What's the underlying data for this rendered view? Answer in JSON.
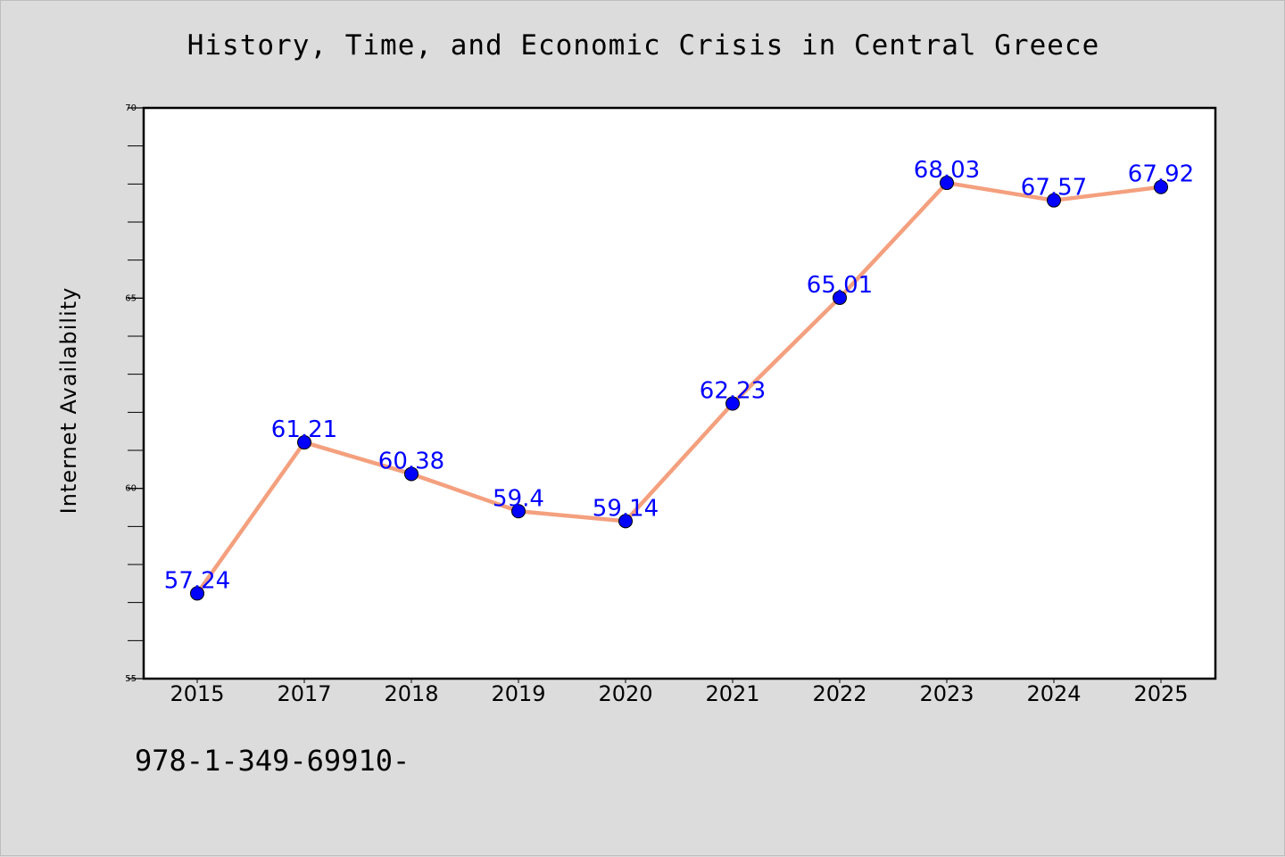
{
  "colors": {
    "background": "#dcdcdc",
    "plot_background": "#ffffff",
    "line": "#f4a07e",
    "marker": "#0000ff",
    "data_label": "#0000ff"
  },
  "footer_code": "978-1-349-69910-",
  "chart_data": {
    "type": "line",
    "title": "History, Time, and Economic Crisis in Central Greece",
    "xlabel": "",
    "ylabel": "Internet Availability",
    "categories": [
      "2015",
      "2017",
      "2018",
      "2019",
      "2020",
      "2021",
      "2022",
      "2023",
      "2024",
      "2025"
    ],
    "series": [
      {
        "values": [
          57.24,
          61.21,
          60.38,
          59.4,
          59.14,
          62.23,
          65.01,
          68.03,
          67.57,
          67.92
        ],
        "labels": [
          "57.24",
          "61.21",
          "60.38",
          "59.4",
          "59.14",
          "62.23",
          "65.01",
          "68.03",
          "67.57",
          "67.92"
        ]
      }
    ],
    "ylim": [
      55,
      70
    ],
    "yticks": [
      55,
      60,
      65,
      70
    ],
    "ytick_labels": [
      "55",
      "60",
      "65",
      "70"
    ],
    "minor_ytick_step": 1,
    "grid": false,
    "legend": "none"
  }
}
